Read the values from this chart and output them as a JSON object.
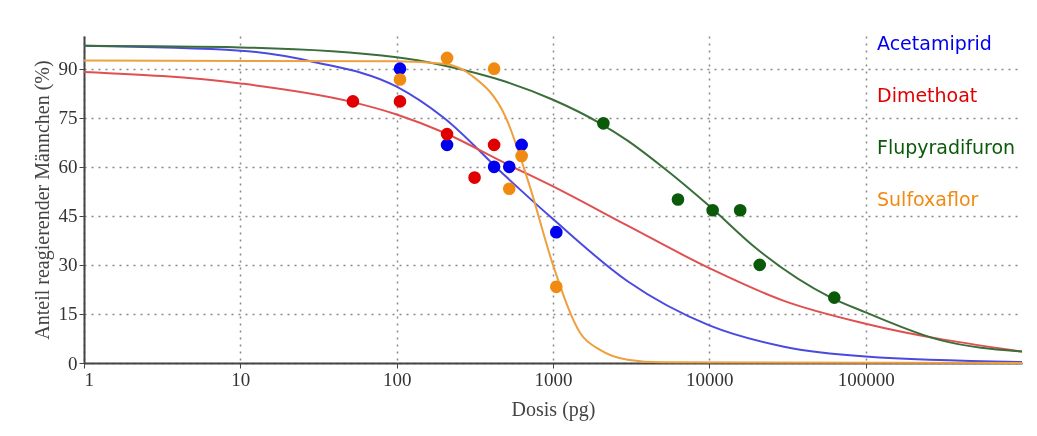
{
  "chart_data": {
    "type": "scatter",
    "xlabel": "Dosis (pg)",
    "ylabel": "Anteil reagierender Männchen (%)",
    "log": "x",
    "grid": true,
    "legend": "top right",
    "xlim": [
      1,
      1000000
    ],
    "xticks": [
      1,
      10,
      100,
      1000,
      10000,
      100000
    ],
    "ylim": [
      0,
      100
    ],
    "yticks": [
      0,
      15,
      30,
      45,
      60,
      75,
      90
    ],
    "series": [
      {
        "name": "Acetamiprid",
        "marker": "circle",
        "color": "#0000ee",
        "x": [
          105,
          210,
          420,
          525,
          630,
          1050
        ],
        "values": [
          90,
          66.7,
          60,
          60,
          66.7,
          40
        ]
      },
      {
        "name": "Dimethoat",
        "marker": "circle",
        "color": "#e00000",
        "x": [
          52.5,
          105,
          210,
          315,
          420
        ],
        "values": [
          80,
          80,
          70,
          56.7,
          66.7
        ]
      },
      {
        "name": "Flupyradifuron",
        "marker": "circle",
        "color": "#0a5a0a",
        "x": [
          2100,
          6300,
          10500,
          15750,
          21000,
          63000
        ],
        "values": [
          73.3,
          50,
          46.7,
          46.7,
          30,
          20
        ]
      },
      {
        "name": "Sulfoxaflor",
        "marker": "circle",
        "color": "#f08a10",
        "x": [
          105,
          210,
          420,
          525,
          630,
          1050
        ],
        "values": [
          86.7,
          93.3,
          90,
          53.3,
          63.3,
          23.3
        ]
      },
      {
        "type": "line",
        "marker": "none",
        "color": "#4a4ae0",
        "x": [
          1,
          10,
          30,
          100,
          200,
          500,
          1000,
          3000,
          10000,
          30000,
          100000,
          1000000
        ],
        "values": [
          97,
          95.5,
          92,
          84.5,
          75,
          57,
          44,
          25,
          11.5,
          5,
          2,
          0.3
        ]
      },
      {
        "type": "line",
        "marker": "none",
        "color": "#e05050",
        "x": [
          1,
          10,
          50,
          100,
          200,
          500,
          1000,
          3000,
          10000,
          30000,
          100000,
          1000000
        ],
        "values": [
          89,
          85.5,
          80,
          76,
          70.5,
          61,
          54,
          42,
          29,
          19,
          12,
          3.5
        ]
      },
      {
        "type": "line",
        "marker": "none",
        "color": "#3a6e3a",
        "x": [
          1,
          10,
          100,
          200,
          500,
          1000,
          2000,
          3000,
          5000,
          10000,
          20000,
          60000,
          100000,
          300000,
          1000000
        ],
        "values": [
          97,
          96.5,
          93.5,
          91,
          86,
          80.5,
          73.3,
          68,
          60,
          48,
          35,
          20,
          15.5,
          7,
          3.5
        ]
      },
      {
        "type": "line",
        "marker": "none",
        "color": "#eea040",
        "x": [
          1,
          100,
          200,
          300,
          500,
          700,
          1000,
          1500,
          2000,
          3000,
          5000,
          1000000
        ],
        "values": [
          92.5,
          92.3,
          91.5,
          88,
          75,
          55,
          30,
          9,
          4,
          1,
          0.2,
          0
        ]
      }
    ]
  }
}
